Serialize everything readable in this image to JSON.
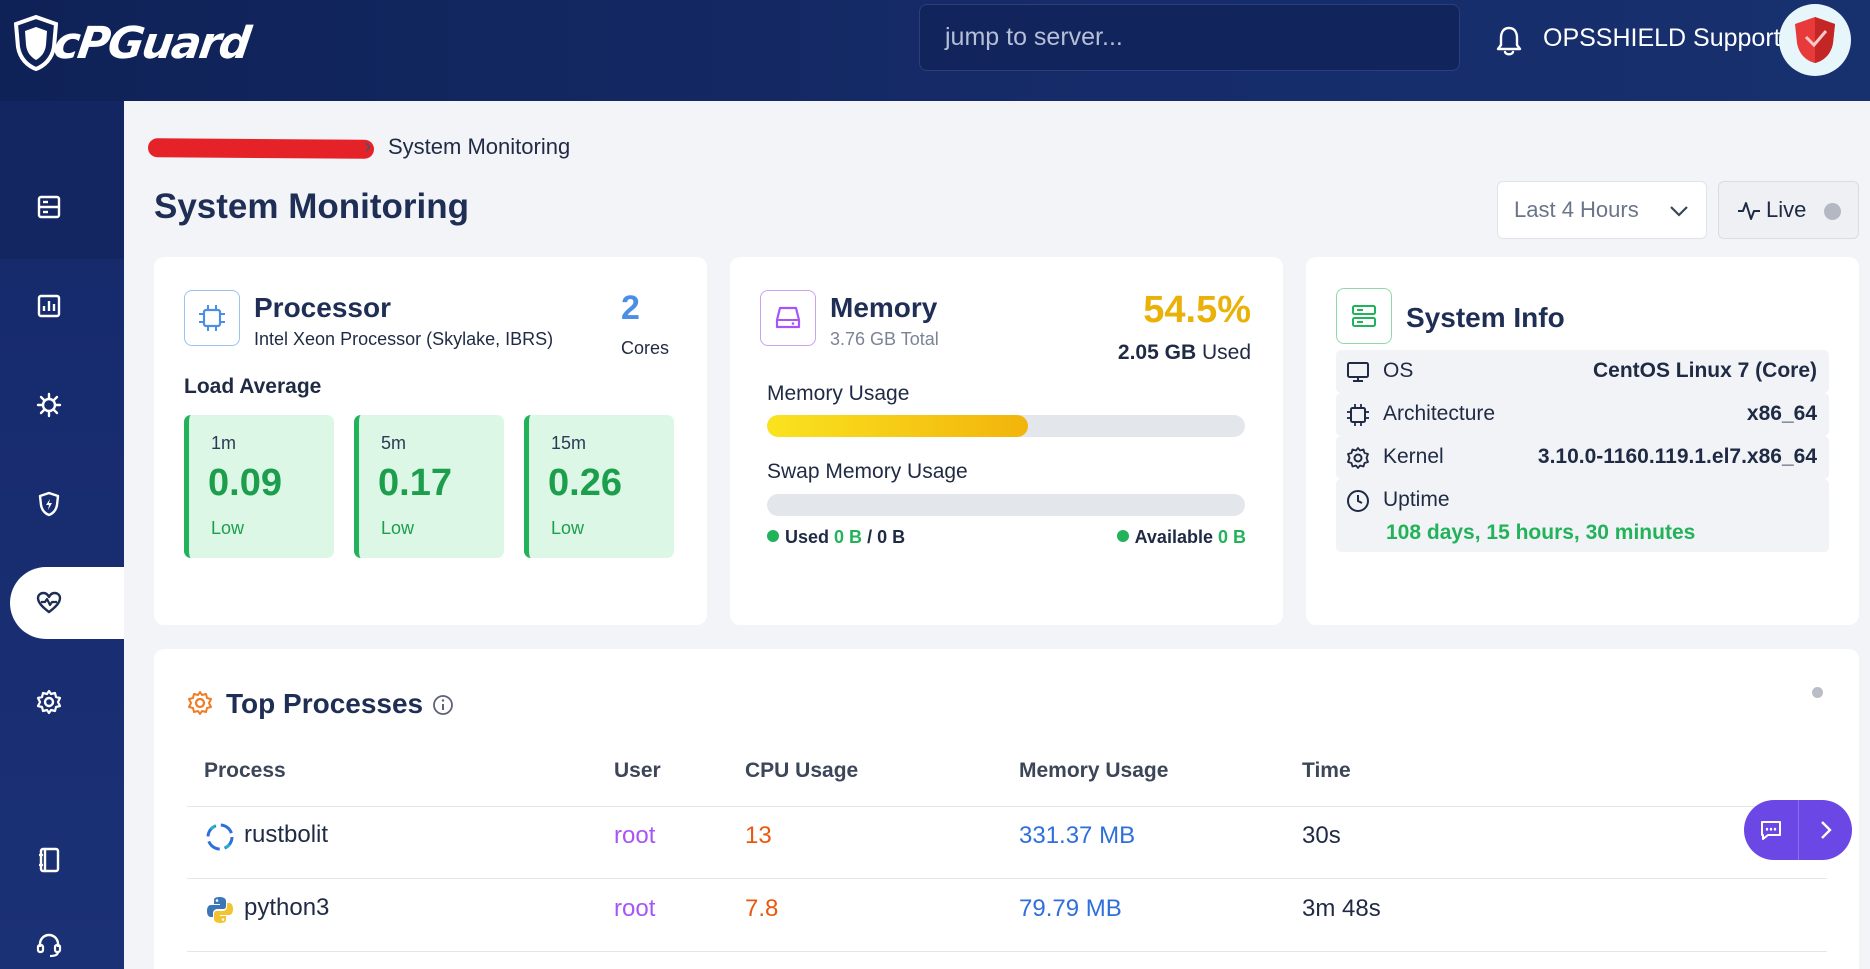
{
  "app": {
    "logo_text": "cPGuard",
    "jump_placeholder": "jump to server...",
    "user_name": "OPSSHIELD Support"
  },
  "sidebar": {
    "items": [
      {
        "name": "servers",
        "icon": "server-list-icon"
      },
      {
        "name": "reports",
        "icon": "bar-chart-icon"
      },
      {
        "name": "malware",
        "icon": "virus-icon"
      },
      {
        "name": "security",
        "icon": "shield-bolt-icon"
      },
      {
        "name": "monitoring",
        "icon": "heart-pulse-icon",
        "active": true
      },
      {
        "name": "settings",
        "icon": "gear-icon"
      },
      {
        "name": "docs",
        "icon": "book-icon"
      },
      {
        "name": "support",
        "icon": "headset-icon"
      }
    ]
  },
  "breadcrumb": {
    "current": "System Monitoring"
  },
  "page": {
    "title": "System Monitoring",
    "range_label": "Last 4 Hours",
    "live_label": "Live"
  },
  "processor": {
    "title": "Processor",
    "model": "Intel Xeon Processor (Skylake, IBRS)",
    "cores_value": "2",
    "cores_label": "Cores",
    "load_label": "Load Average",
    "loads": [
      {
        "period": "1m",
        "value": "0.09",
        "level": "Low"
      },
      {
        "period": "5m",
        "value": "0.17",
        "level": "Low"
      },
      {
        "period": "15m",
        "value": "0.26",
        "level": "Low"
      }
    ]
  },
  "memory": {
    "title": "Memory",
    "total": "3.76 GB Total",
    "percent": "54.5%",
    "percent_value": 0.545,
    "used_value": "2.05 GB",
    "used_suffix": "Used",
    "usage_label": "Memory Usage",
    "swap_label": "Swap Memory Usage",
    "swap_percent_value": 0,
    "swap_used_label": "Used",
    "swap_used_value": "0 B",
    "swap_slash": "/",
    "swap_total": "0 B",
    "available_label": "Available",
    "available_value": "0 B"
  },
  "system_info": {
    "title": "System Info",
    "rows": [
      {
        "key": "OS",
        "value": "CentOS Linux 7 (Core)",
        "icon": "monitor-icon"
      },
      {
        "key": "Architecture",
        "value": "x86_64",
        "icon": "cpu-chip-icon"
      },
      {
        "key": "Kernel",
        "value": "3.10.0-1160.119.1.el7.x86_64",
        "icon": "gear-icon"
      }
    ],
    "uptime_label": "Uptime",
    "uptime_value": "108 days, 15 hours, 30 minutes"
  },
  "processes": {
    "title": "Top Processes",
    "columns": [
      "Process",
      "User",
      "CPU Usage",
      "Memory Usage",
      "Time"
    ],
    "rows": [
      {
        "process": "rustbolit",
        "user": "root",
        "cpu": "13",
        "memory": "331.37 MB",
        "time": "30s",
        "icon": "spinner-icon"
      },
      {
        "process": "python3",
        "user": "root",
        "cpu": "7.8",
        "memory": "79.79 MB",
        "time": "3m 48s",
        "icon": "python-icon"
      }
    ]
  },
  "colors": {
    "accent": "#6b47e6",
    "topbar": "#0f2257",
    "good": "#22b35a",
    "warning": "#eab208",
    "user_purple": "#a855f7",
    "cpu_orange": "#ea580c",
    "mem_blue": "#2f6fdc"
  }
}
